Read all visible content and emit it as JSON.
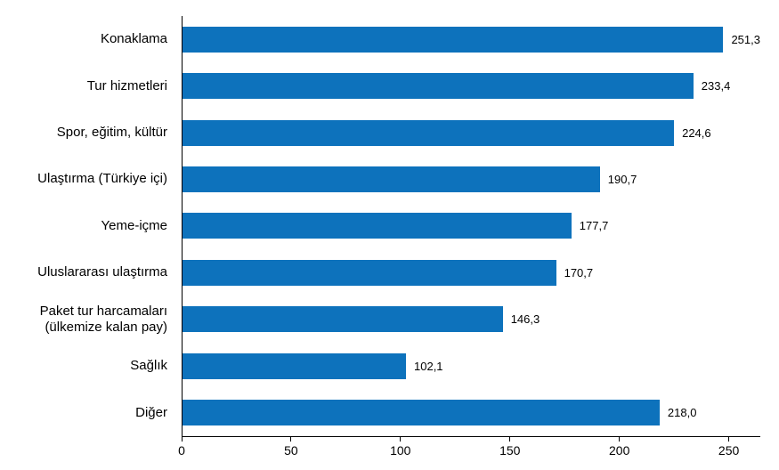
{
  "chart_data": {
    "type": "bar",
    "orientation": "horizontal",
    "categories": [
      "Konaklama",
      "Tur hizmetleri",
      "Spor, eğitim, kültür",
      "Ulaştırma (Türkiye içi)",
      "Yeme-içme",
      "Uluslararası ulaştırma",
      "Paket tur harcamaları\n(ülkemize kalan pay)",
      "Sağlık",
      "Diğer"
    ],
    "values": [
      251.3,
      233.4,
      224.6,
      190.7,
      177.7,
      170.7,
      146.3,
      102.1,
      218.0
    ],
    "value_labels": [
      "251,3",
      "233,4",
      "224,6",
      "190,7",
      "177,7",
      "170,7",
      "146,3",
      "102,1",
      "218,0"
    ],
    "x_ticks": [
      0,
      50,
      100,
      150,
      200,
      250
    ],
    "x_tick_labels": [
      "0",
      "50",
      "100",
      "150",
      "200",
      "250"
    ],
    "xlim": [
      0,
      264
    ],
    "grid": false,
    "legend": "none",
    "bar_color": "#0d72bc",
    "axis_color": "#000000"
  }
}
